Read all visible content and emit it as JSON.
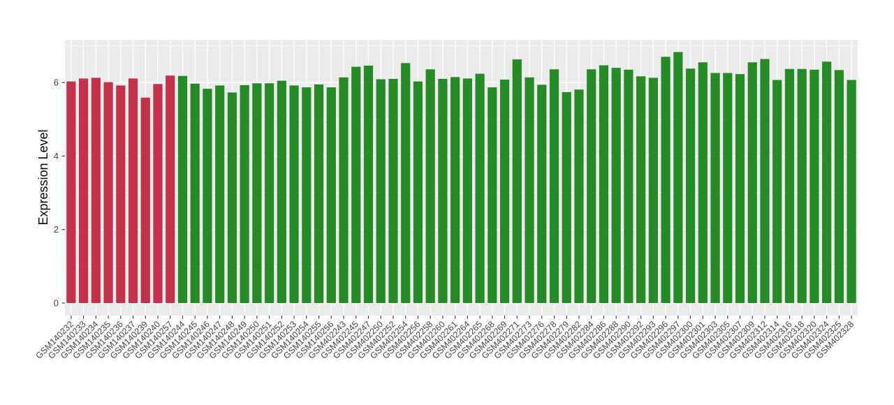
{
  "figure": {
    "background": "#FFFFFF",
    "panel_background": "#EBEBEB",
    "grid_color": "#FFFFFF",
    "tick_color": "#333333",
    "axis_text_color": "#444444",
    "axis_title_color": "#000000"
  },
  "chart_data": {
    "type": "bar",
    "title": "",
    "xlabel": "",
    "ylabel": "Expression Level",
    "legend": "none",
    "grid": true,
    "ylim": [
      0,
      7.17
    ],
    "yticks": [
      0,
      2,
      4,
      6
    ],
    "yticks_minor": [
      1,
      3,
      5,
      7
    ],
    "x_label_rotation": 45,
    "categories": [
      "GSM140232",
      "GSM140233",
      "GSM140234",
      "GSM140235",
      "GSM140236",
      "GSM140237",
      "GSM140239",
      "GSM140240",
      "GSM140257",
      "GSM140244",
      "GSM140245",
      "GSM140246",
      "GSM140247",
      "GSM140248",
      "GSM140249",
      "GSM140250",
      "GSM140251",
      "GSM140252",
      "GSM140253",
      "GSM140254",
      "GSM140255",
      "GSM140256",
      "GSM402243",
      "GSM402245",
      "GSM402247",
      "GSM402250",
      "GSM402252",
      "GSM402254",
      "GSM402256",
      "GSM402258",
      "GSM402260",
      "GSM402261",
      "GSM402264",
      "GSM402265",
      "GSM402268",
      "GSM402269",
      "GSM402271",
      "GSM402273",
      "GSM402276",
      "GSM402278",
      "GSM402279",
      "GSM402282",
      "GSM402284",
      "GSM402286",
      "GSM402288",
      "GSM402290",
      "GSM402292",
      "GSM402293",
      "GSM402296",
      "GSM402297",
      "GSM402300",
      "GSM402301",
      "GSM402303",
      "GSM402305",
      "GSM402307",
      "GSM402309",
      "GSM402312",
      "GSM402314",
      "GSM402316",
      "GSM402318",
      "GSM402320",
      "GSM402324",
      "GSM402325",
      "GSM402328"
    ],
    "values": [
      6.03,
      6.11,
      6.13,
      6.01,
      5.92,
      6.11,
      5.59,
      5.96,
      6.19,
      6.18,
      5.97,
      5.83,
      5.92,
      5.73,
      5.93,
      5.98,
      5.98,
      6.05,
      5.92,
      5.87,
      5.95,
      5.87,
      6.14,
      6.43,
      6.46,
      6.09,
      6.1,
      6.53,
      6.03,
      6.36,
      6.1,
      6.15,
      6.11,
      6.24,
      5.87,
      6.08,
      6.63,
      6.14,
      5.94,
      6.36,
      5.74,
      5.81,
      6.36,
      6.47,
      6.4,
      6.35,
      6.17,
      6.13,
      6.7,
      6.83,
      6.38,
      6.55,
      6.26,
      6.26,
      6.23,
      6.55,
      6.64,
      6.07,
      6.37,
      6.37,
      6.35,
      6.57,
      6.34,
      6.07
    ],
    "groups": [
      {
        "color": "#C3324B",
        "start": 0,
        "count": 9
      },
      {
        "color": "#268B26",
        "start": 9,
        "count": 55
      }
    ]
  }
}
